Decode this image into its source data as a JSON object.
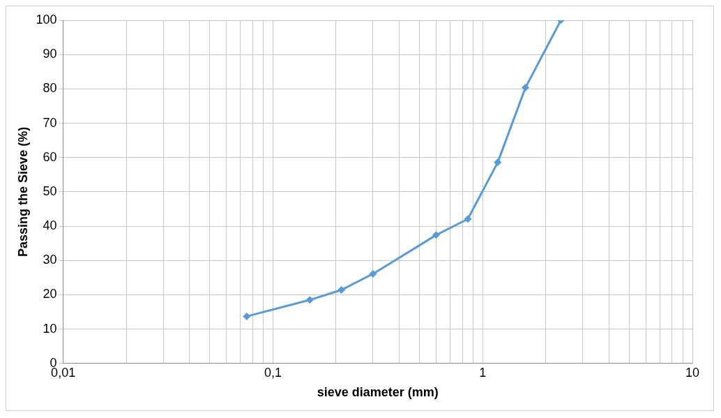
{
  "chart_data": {
    "type": "line",
    "xlabel": "sieve diameter (mm)",
    "ylabel": "Passing the Sieve (%)",
    "x": [
      0.075,
      0.15,
      0.212,
      0.3,
      0.6,
      0.85,
      1.18,
      1.6,
      2.36
    ],
    "series": [
      {
        "color": "#5b9bd5",
        "values": [
          13.7,
          18.5,
          21.4,
          26.1,
          37.4,
          42.1,
          58.6,
          80.4,
          100
        ]
      }
    ],
    "log": "x",
    "xlim": [
      0.01,
      10
    ],
    "xticks": [
      {
        "value": 0.01,
        "label": "0,01"
      },
      {
        "value": 0.02,
        "label": null
      },
      {
        "value": 0.03,
        "label": null
      },
      {
        "value": 0.04,
        "label": null
      },
      {
        "value": 0.05,
        "label": null
      },
      {
        "value": 0.06,
        "label": null
      },
      {
        "value": 0.07,
        "label": null
      },
      {
        "value": 0.08,
        "label": null
      },
      {
        "value": 0.09,
        "label": null
      },
      {
        "value": 0.1,
        "label": "0,1"
      },
      {
        "value": 0.2,
        "label": null
      },
      {
        "value": 0.3,
        "label": null
      },
      {
        "value": 0.4,
        "label": null
      },
      {
        "value": 0.5,
        "label": null
      },
      {
        "value": 0.6,
        "label": null
      },
      {
        "value": 0.7,
        "label": null
      },
      {
        "value": 0.8,
        "label": null
      },
      {
        "value": 0.9,
        "label": null
      },
      1,
      {
        "value": 2,
        "label": null
      },
      {
        "value": 3,
        "label": null
      },
      {
        "value": 4,
        "label": null
      },
      {
        "value": 5,
        "label": null
      },
      {
        "value": 6,
        "label": null
      },
      {
        "value": 7,
        "label": null
      },
      {
        "value": 8,
        "label": null
      },
      {
        "value": 9,
        "label": null
      },
      10
    ],
    "ylim": [
      0,
      100
    ],
    "yticks": [
      0,
      10,
      20,
      30,
      40,
      50,
      60,
      70,
      80,
      90,
      100
    ],
    "grid": true,
    "legend": false,
    "marker": "diamond",
    "line_style": "solid"
  }
}
